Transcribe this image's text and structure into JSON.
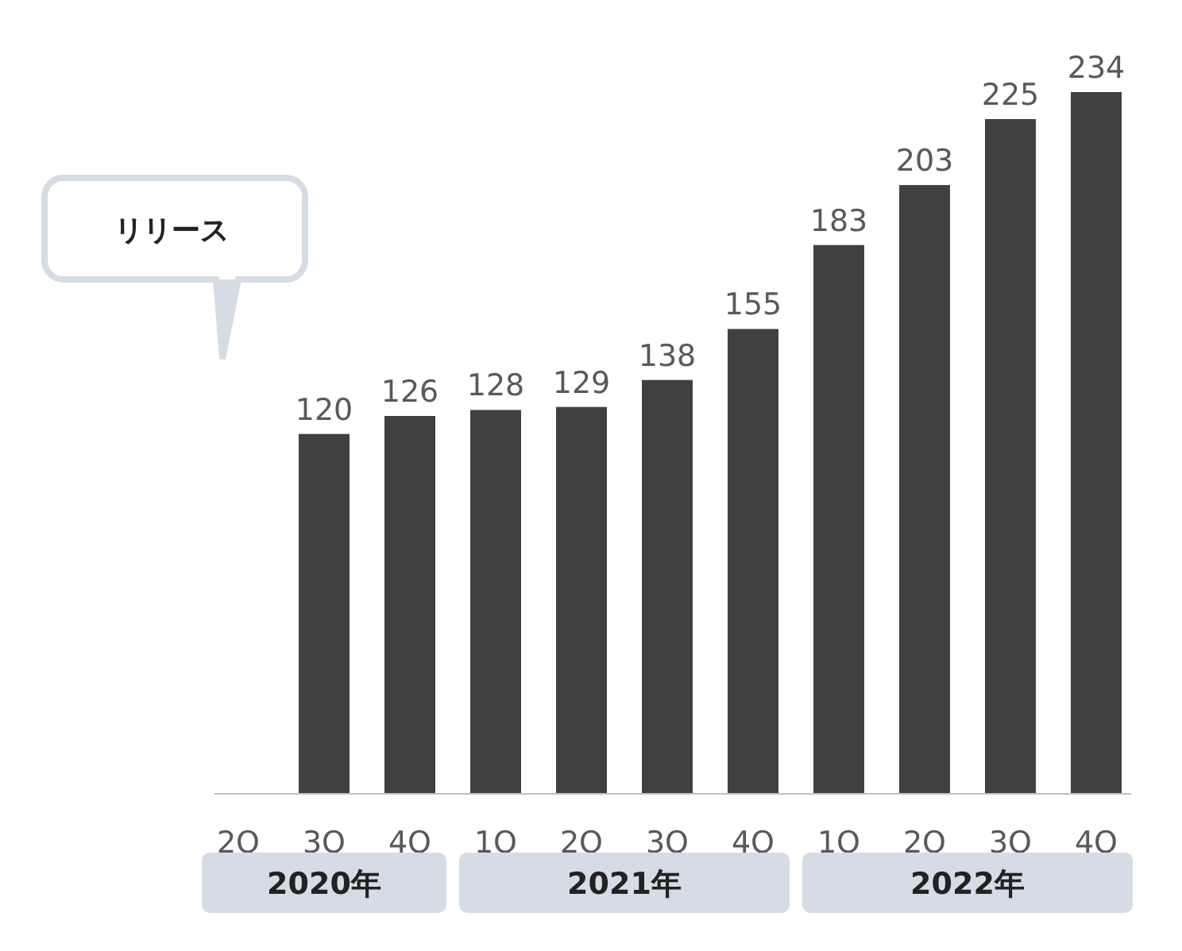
{
  "chart_data": {
    "type": "bar",
    "categories": [
      "2Q",
      "3Q",
      "4Q",
      "1Q",
      "2Q",
      "3Q",
      "4Q",
      "1Q",
      "2Q",
      "3Q",
      "4Q"
    ],
    "values": [
      null,
      120,
      126,
      128,
      129,
      138,
      155,
      183,
      203,
      225,
      234
    ],
    "color": "#404040",
    "data_labels": true,
    "annotations": [
      "リリース",
      "2020年",
      "2021年",
      "2022年"
    ]
  }
}
